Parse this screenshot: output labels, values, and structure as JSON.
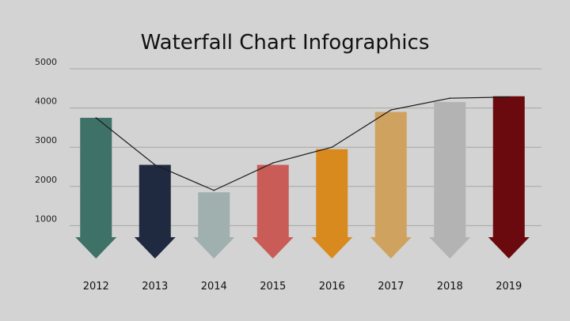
{
  "chart_data": {
    "type": "bar",
    "title": "Waterfall Chart Infographics",
    "categories": [
      "2012",
      "2013",
      "2014",
      "2015",
      "2016",
      "2017",
      "2018",
      "2019"
    ],
    "values": [
      3750,
      2550,
      1850,
      2550,
      2950,
      3900,
      4150,
      4300
    ],
    "colors": [
      "#3e7167",
      "#1f2a40",
      "#9fb0ae",
      "#c95c57",
      "#d98a1f",
      "#cfa35f",
      "#b3b3b3",
      "#6b0a0e"
    ],
    "line_values": [
      3750,
      2550,
      1900,
      2600,
      3000,
      3950,
      4250,
      4280
    ],
    "line_color": "#1a1a1a",
    "yticks": [
      "1000",
      "2000",
      "3000",
      "4000",
      "5000"
    ],
    "ylim": [
      0,
      5000
    ],
    "grid": true,
    "bar_shape": "down-arrow",
    "xlabel": "",
    "ylabel": ""
  }
}
